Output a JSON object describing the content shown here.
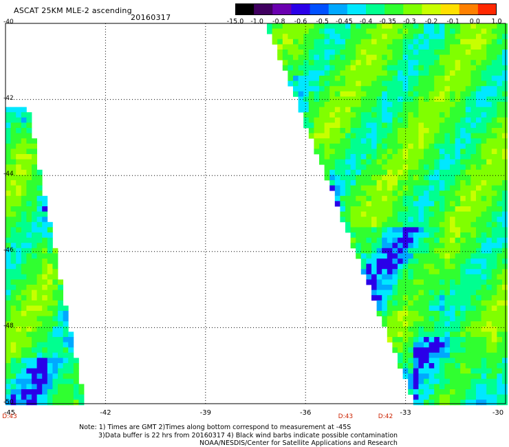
{
  "header": {
    "title": "ASCAT 25KM MLE-2 ascending",
    "date": "20160317"
  },
  "colorbar": {
    "labels": [
      "-15.0",
      "-1.0",
      "-0.8",
      "-0.6",
      "-0.5",
      "-0.45",
      "-0.4",
      "-0.35",
      "-0.3",
      "-0.2",
      "-0.1",
      "0.0",
      "1.0"
    ],
    "colors": [
      "#000000",
      "#400060",
      "#6a00b0",
      "#2a00e8",
      "#0050ff",
      "#00a8ff",
      "#00e8ff",
      "#00ff90",
      "#30ff30",
      "#80ff00",
      "#c8ff00",
      "#ffe000",
      "#ff8000",
      "#ff2800"
    ]
  },
  "map": {
    "lat_labels": [
      "-40",
      "-42",
      "-44",
      "-46",
      "-48",
      "-50"
    ],
    "lon_labels": [
      "-45",
      "-42",
      "-39",
      "-36",
      "-33",
      "-30"
    ],
    "lat_range": [
      -50,
      -40
    ],
    "lon_range": [
      -45,
      -30
    ],
    "time_labels": [
      {
        "text": "D:43",
        "lon": -45.0
      },
      {
        "text": "D:43",
        "lon": -34.8
      },
      {
        "text": "D:42",
        "lon": -33.6
      }
    ]
  },
  "notes": {
    "line1": "Note: 1) Times are GMT 2)Times along bottom correspond to measurement at -45S",
    "line2": "3)Data buffer is 22 hrs from 20160317 4) Black wind barbs indicate possible contamination",
    "line3": "NOAA/NESDIS/Center for Satellite Applications and Research"
  }
}
